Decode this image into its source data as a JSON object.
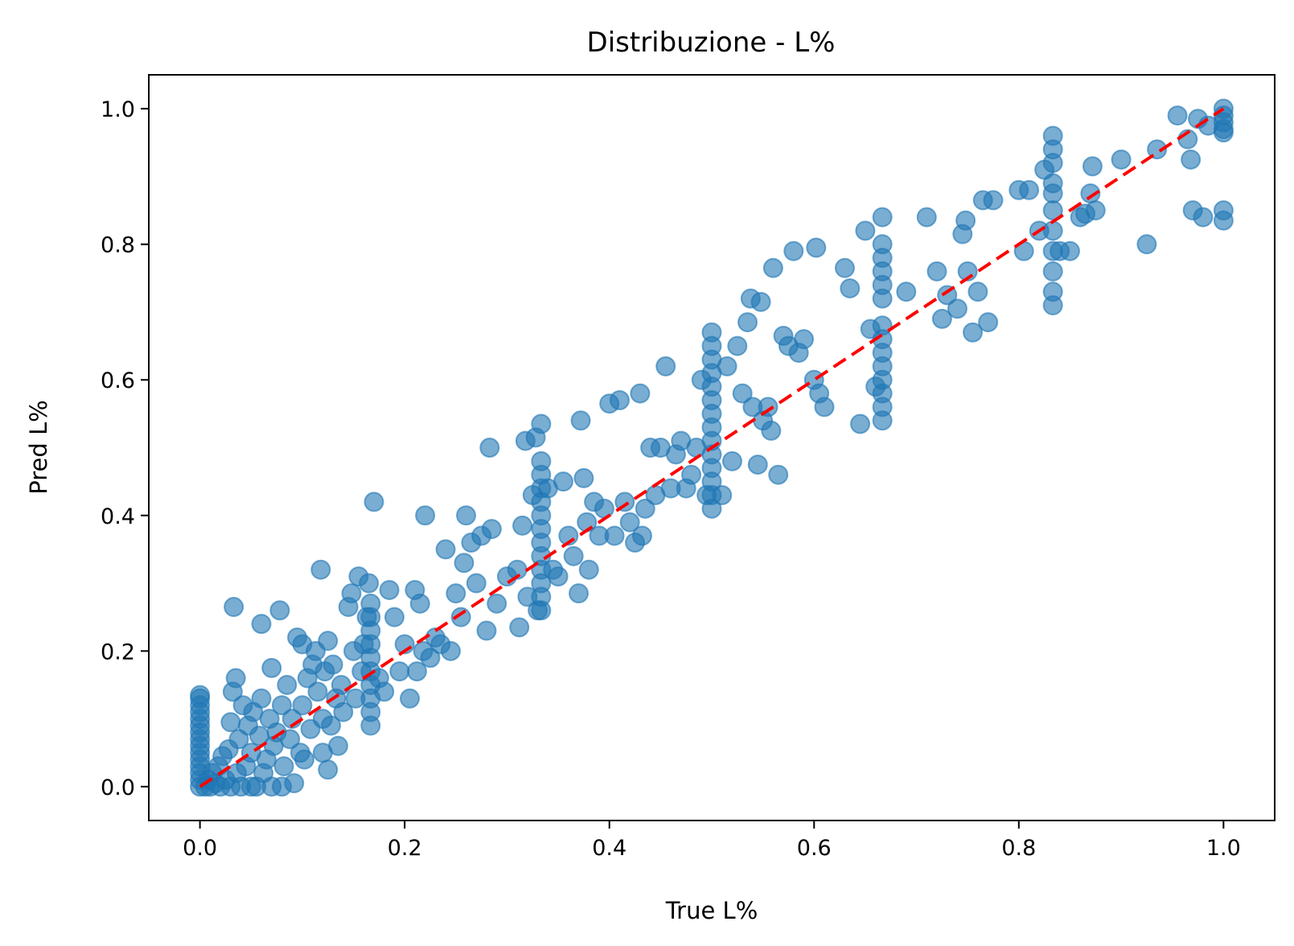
{
  "chart_data": {
    "type": "scatter",
    "title": "Distribuzione - L%",
    "xlabel": "True L%",
    "ylabel": "Pred L%",
    "xlim": [
      -0.05,
      1.05
    ],
    "ylim": [
      -0.05,
      1.05
    ],
    "xticks": [
      {
        "value": 0.0,
        "label": "0.0"
      },
      {
        "value": 0.2,
        "label": "0.2"
      },
      {
        "value": 0.4,
        "label": "0.4"
      },
      {
        "value": 0.6,
        "label": "0.6"
      },
      {
        "value": 0.8,
        "label": "0.8"
      },
      {
        "value": 1.0,
        "label": "1.0"
      }
    ],
    "yticks": [
      {
        "value": 0.0,
        "label": "0.0"
      },
      {
        "value": 0.2,
        "label": "0.2"
      },
      {
        "value": 0.4,
        "label": "0.4"
      },
      {
        "value": 0.6,
        "label": "0.6"
      },
      {
        "value": 0.8,
        "label": "0.8"
      },
      {
        "value": 1.0,
        "label": "1.0"
      }
    ],
    "grid": false,
    "colors": {
      "points": "#1f77b4",
      "reference_line": "#ff0000"
    },
    "reference_line": {
      "style": "dashed",
      "from": [
        0,
        0
      ],
      "to": [
        1,
        1
      ]
    },
    "series": [
      {
        "points": [
          [
            0.0,
            0.0
          ],
          [
            0.0,
            0.01
          ],
          [
            0.0,
            0.02
          ],
          [
            0.0,
            0.03
          ],
          [
            0.0,
            0.04
          ],
          [
            0.0,
            0.05
          ],
          [
            0.0,
            0.06
          ],
          [
            0.0,
            0.07
          ],
          [
            0.0,
            0.08
          ],
          [
            0.0,
            0.09
          ],
          [
            0.0,
            0.1
          ],
          [
            0.0,
            0.11
          ],
          [
            0.0,
            0.12
          ],
          [
            0.0,
            0.13
          ],
          [
            0.0,
            0.135
          ],
          [
            0.005,
            0.0
          ],
          [
            0.008,
            0.01
          ],
          [
            0.01,
            0.0
          ],
          [
            0.012,
            0.02
          ],
          [
            0.015,
            0.005
          ],
          [
            0.018,
            0.03
          ],
          [
            0.02,
            0.0
          ],
          [
            0.022,
            0.045
          ],
          [
            0.025,
            0.01
          ],
          [
            0.028,
            0.055
          ],
          [
            0.03,
            0.0
          ],
          [
            0.03,
            0.095
          ],
          [
            0.032,
            0.14
          ],
          [
            0.033,
            0.265
          ],
          [
            0.035,
            0.16
          ],
          [
            0.036,
            0.02
          ],
          [
            0.038,
            0.07
          ],
          [
            0.04,
            0.0
          ],
          [
            0.042,
            0.12
          ],
          [
            0.045,
            0.03
          ],
          [
            0.047,
            0.09
          ],
          [
            0.05,
            0.0
          ],
          [
            0.05,
            0.05
          ],
          [
            0.052,
            0.11
          ],
          [
            0.055,
            0.0
          ],
          [
            0.058,
            0.075
          ],
          [
            0.06,
            0.24
          ],
          [
            0.06,
            0.13
          ],
          [
            0.062,
            0.02
          ],
          [
            0.065,
            0.04
          ],
          [
            0.068,
            0.1
          ],
          [
            0.07,
            0.0
          ],
          [
            0.07,
            0.175
          ],
          [
            0.072,
            0.06
          ],
          [
            0.075,
            0.08
          ],
          [
            0.078,
            0.26
          ],
          [
            0.08,
            0.0
          ],
          [
            0.08,
            0.12
          ],
          [
            0.082,
            0.03
          ],
          [
            0.085,
            0.15
          ],
          [
            0.088,
            0.07
          ],
          [
            0.09,
            0.1
          ],
          [
            0.092,
            0.005
          ],
          [
            0.095,
            0.22
          ],
          [
            0.098,
            0.05
          ],
          [
            0.1,
            0.21
          ],
          [
            0.1,
            0.12
          ],
          [
            0.102,
            0.04
          ],
          [
            0.105,
            0.16
          ],
          [
            0.108,
            0.085
          ],
          [
            0.11,
            0.18
          ],
          [
            0.113,
            0.2
          ],
          [
            0.115,
            0.14
          ],
          [
            0.118,
            0.32
          ],
          [
            0.12,
            0.1
          ],
          [
            0.12,
            0.05
          ],
          [
            0.122,
            0.17
          ],
          [
            0.125,
            0.025
          ],
          [
            0.125,
            0.215
          ],
          [
            0.128,
            0.09
          ],
          [
            0.13,
            0.18
          ],
          [
            0.133,
            0.13
          ],
          [
            0.135,
            0.06
          ],
          [
            0.138,
            0.15
          ],
          [
            0.14,
            0.11
          ],
          [
            0.145,
            0.265
          ],
          [
            0.148,
            0.285
          ],
          [
            0.15,
            0.2
          ],
          [
            0.152,
            0.13
          ],
          [
            0.155,
            0.31
          ],
          [
            0.158,
            0.17
          ],
          [
            0.16,
            0.21
          ],
          [
            0.163,
            0.25
          ],
          [
            0.165,
            0.3
          ],
          [
            0.1667,
            0.09
          ],
          [
            0.1667,
            0.11
          ],
          [
            0.1667,
            0.13
          ],
          [
            0.1667,
            0.15
          ],
          [
            0.1667,
            0.17
          ],
          [
            0.1667,
            0.19
          ],
          [
            0.1667,
            0.21
          ],
          [
            0.1667,
            0.23
          ],
          [
            0.1667,
            0.25
          ],
          [
            0.1667,
            0.27
          ],
          [
            0.17,
            0.42
          ],
          [
            0.175,
            0.16
          ],
          [
            0.18,
            0.14
          ],
          [
            0.185,
            0.29
          ],
          [
            0.19,
            0.25
          ],
          [
            0.195,
            0.17
          ],
          [
            0.2,
            0.21
          ],
          [
            0.205,
            0.13
          ],
          [
            0.21,
            0.29
          ],
          [
            0.212,
            0.17
          ],
          [
            0.215,
            0.27
          ],
          [
            0.218,
            0.2
          ],
          [
            0.22,
            0.4
          ],
          [
            0.225,
            0.19
          ],
          [
            0.23,
            0.22
          ],
          [
            0.235,
            0.21
          ],
          [
            0.24,
            0.35
          ],
          [
            0.245,
            0.2
          ],
          [
            0.25,
            0.285
          ],
          [
            0.255,
            0.25
          ],
          [
            0.258,
            0.33
          ],
          [
            0.26,
            0.4
          ],
          [
            0.265,
            0.36
          ],
          [
            0.27,
            0.3
          ],
          [
            0.275,
            0.37
          ],
          [
            0.28,
            0.23
          ],
          [
            0.283,
            0.5
          ],
          [
            0.285,
            0.38
          ],
          [
            0.29,
            0.27
          ],
          [
            0.3,
            0.31
          ],
          [
            0.31,
            0.32
          ],
          [
            0.312,
            0.235
          ],
          [
            0.315,
            0.385
          ],
          [
            0.318,
            0.51
          ],
          [
            0.32,
            0.28
          ],
          [
            0.325,
            0.43
          ],
          [
            0.328,
            0.515
          ],
          [
            0.33,
            0.26
          ],
          [
            0.3333,
            0.26
          ],
          [
            0.3333,
            0.28
          ],
          [
            0.3333,
            0.3
          ],
          [
            0.3333,
            0.32
          ],
          [
            0.3333,
            0.34
          ],
          [
            0.3333,
            0.36
          ],
          [
            0.3333,
            0.38
          ],
          [
            0.3333,
            0.4
          ],
          [
            0.3333,
            0.42
          ],
          [
            0.3333,
            0.44
          ],
          [
            0.3333,
            0.46
          ],
          [
            0.3333,
            0.48
          ],
          [
            0.3333,
            0.535
          ],
          [
            0.34,
            0.44
          ],
          [
            0.345,
            0.32
          ],
          [
            0.35,
            0.31
          ],
          [
            0.355,
            0.45
          ],
          [
            0.36,
            0.37
          ],
          [
            0.365,
            0.34
          ],
          [
            0.37,
            0.285
          ],
          [
            0.372,
            0.54
          ],
          [
            0.375,
            0.455
          ],
          [
            0.378,
            0.39
          ],
          [
            0.38,
            0.32
          ],
          [
            0.385,
            0.42
          ],
          [
            0.39,
            0.37
          ],
          [
            0.395,
            0.41
          ],
          [
            0.4,
            0.565
          ],
          [
            0.405,
            0.37
          ],
          [
            0.41,
            0.57
          ],
          [
            0.415,
            0.42
          ],
          [
            0.42,
            0.39
          ],
          [
            0.425,
            0.36
          ],
          [
            0.43,
            0.58
          ],
          [
            0.432,
            0.37
          ],
          [
            0.435,
            0.41
          ],
          [
            0.44,
            0.5
          ],
          [
            0.445,
            0.43
          ],
          [
            0.45,
            0.5
          ],
          [
            0.455,
            0.62
          ],
          [
            0.46,
            0.44
          ],
          [
            0.465,
            0.49
          ],
          [
            0.47,
            0.51
          ],
          [
            0.475,
            0.44
          ],
          [
            0.48,
            0.46
          ],
          [
            0.485,
            0.5
          ],
          [
            0.49,
            0.6
          ],
          [
            0.495,
            0.43
          ],
          [
            0.5,
            0.41
          ],
          [
            0.5,
            0.43
          ],
          [
            0.5,
            0.45
          ],
          [
            0.5,
            0.47
          ],
          [
            0.5,
            0.49
          ],
          [
            0.5,
            0.51
          ],
          [
            0.5,
            0.53
          ],
          [
            0.5,
            0.55
          ],
          [
            0.5,
            0.57
          ],
          [
            0.5,
            0.59
          ],
          [
            0.5,
            0.61
          ],
          [
            0.5,
            0.63
          ],
          [
            0.5,
            0.65
          ],
          [
            0.5,
            0.67
          ],
          [
            0.51,
            0.43
          ],
          [
            0.515,
            0.62
          ],
          [
            0.52,
            0.48
          ],
          [
            0.525,
            0.65
          ],
          [
            0.53,
            0.58
          ],
          [
            0.535,
            0.685
          ],
          [
            0.538,
            0.72
          ],
          [
            0.54,
            0.56
          ],
          [
            0.545,
            0.475
          ],
          [
            0.548,
            0.715
          ],
          [
            0.55,
            0.54
          ],
          [
            0.555,
            0.56
          ],
          [
            0.558,
            0.525
          ],
          [
            0.56,
            0.765
          ],
          [
            0.565,
            0.46
          ],
          [
            0.57,
            0.665
          ],
          [
            0.575,
            0.65
          ],
          [
            0.58,
            0.79
          ],
          [
            0.585,
            0.64
          ],
          [
            0.59,
            0.66
          ],
          [
            0.6,
            0.6
          ],
          [
            0.602,
            0.795
          ],
          [
            0.605,
            0.58
          ],
          [
            0.61,
            0.56
          ],
          [
            0.63,
            0.765
          ],
          [
            0.635,
            0.735
          ],
          [
            0.645,
            0.535
          ],
          [
            0.65,
            0.82
          ],
          [
            0.655,
            0.675
          ],
          [
            0.66,
            0.59
          ],
          [
            0.6667,
            0.54
          ],
          [
            0.6667,
            0.56
          ],
          [
            0.6667,
            0.58
          ],
          [
            0.6667,
            0.6
          ],
          [
            0.6667,
            0.62
          ],
          [
            0.6667,
            0.64
          ],
          [
            0.6667,
            0.66
          ],
          [
            0.6667,
            0.68
          ],
          [
            0.6667,
            0.72
          ],
          [
            0.6667,
            0.74
          ],
          [
            0.6667,
            0.76
          ],
          [
            0.6667,
            0.78
          ],
          [
            0.6667,
            0.8
          ],
          [
            0.6667,
            0.84
          ],
          [
            0.69,
            0.73
          ],
          [
            0.71,
            0.84
          ],
          [
            0.72,
            0.76
          ],
          [
            0.725,
            0.69
          ],
          [
            0.73,
            0.725
          ],
          [
            0.74,
            0.705
          ],
          [
            0.745,
            0.815
          ],
          [
            0.748,
            0.835
          ],
          [
            0.75,
            0.76
          ],
          [
            0.755,
            0.67
          ],
          [
            0.76,
            0.73
          ],
          [
            0.765,
            0.865
          ],
          [
            0.77,
            0.685
          ],
          [
            0.775,
            0.865
          ],
          [
            0.8,
            0.88
          ],
          [
            0.805,
            0.79
          ],
          [
            0.81,
            0.88
          ],
          [
            0.82,
            0.82
          ],
          [
            0.825,
            0.91
          ],
          [
            0.8333,
            0.71
          ],
          [
            0.8333,
            0.73
          ],
          [
            0.8333,
            0.76
          ],
          [
            0.8333,
            0.79
          ],
          [
            0.8333,
            0.82
          ],
          [
            0.8333,
            0.85
          ],
          [
            0.8333,
            0.875
          ],
          [
            0.8333,
            0.89
          ],
          [
            0.8333,
            0.92
          ],
          [
            0.8333,
            0.94
          ],
          [
            0.8333,
            0.96
          ],
          [
            0.84,
            0.79
          ],
          [
            0.85,
            0.79
          ],
          [
            0.86,
            0.84
          ],
          [
            0.865,
            0.845
          ],
          [
            0.87,
            0.875
          ],
          [
            0.872,
            0.915
          ],
          [
            0.875,
            0.85
          ],
          [
            0.9,
            0.925
          ],
          [
            0.925,
            0.8
          ],
          [
            0.935,
            0.94
          ],
          [
            0.955,
            0.99
          ],
          [
            0.965,
            0.955
          ],
          [
            0.968,
            0.925
          ],
          [
            0.97,
            0.85
          ],
          [
            0.975,
            0.985
          ],
          [
            0.98,
            0.84
          ],
          [
            0.985,
            0.975
          ],
          [
            1.0,
            0.835
          ],
          [
            1.0,
            0.85
          ],
          [
            1.0,
            0.965
          ],
          [
            1.0,
            0.97
          ],
          [
            1.0,
            0.98
          ],
          [
            1.0,
            0.99
          ],
          [
            1.0,
            1.0
          ]
        ]
      }
    ]
  }
}
